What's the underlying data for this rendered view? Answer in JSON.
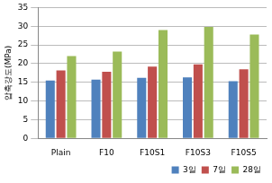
{
  "chart_data": {
    "type": "bar",
    "y_label": "압축강도(MPa)",
    "categories": [
      "Plain",
      "F10",
      "F10S1",
      "F10S3",
      "F10S5"
    ],
    "series": [
      {
        "name": "3일",
        "color": "#4f81bd",
        "values": [
          15.5,
          15.7,
          16.2,
          16.3,
          15.3
        ]
      },
      {
        "name": "7일",
        "color": "#c0504d",
        "values": [
          18.2,
          17.8,
          19.2,
          19.8,
          18.5
        ]
      },
      {
        "name": "28일",
        "color": "#9bbb59",
        "values": [
          22,
          23.2,
          29,
          29.8,
          27.8
        ]
      }
    ],
    "ylim": [
      0,
      35
    ],
    "yticks": [
      0,
      5,
      10,
      15,
      20,
      25,
      30,
      35
    ],
    "grid": true,
    "legend": "lower right"
  }
}
